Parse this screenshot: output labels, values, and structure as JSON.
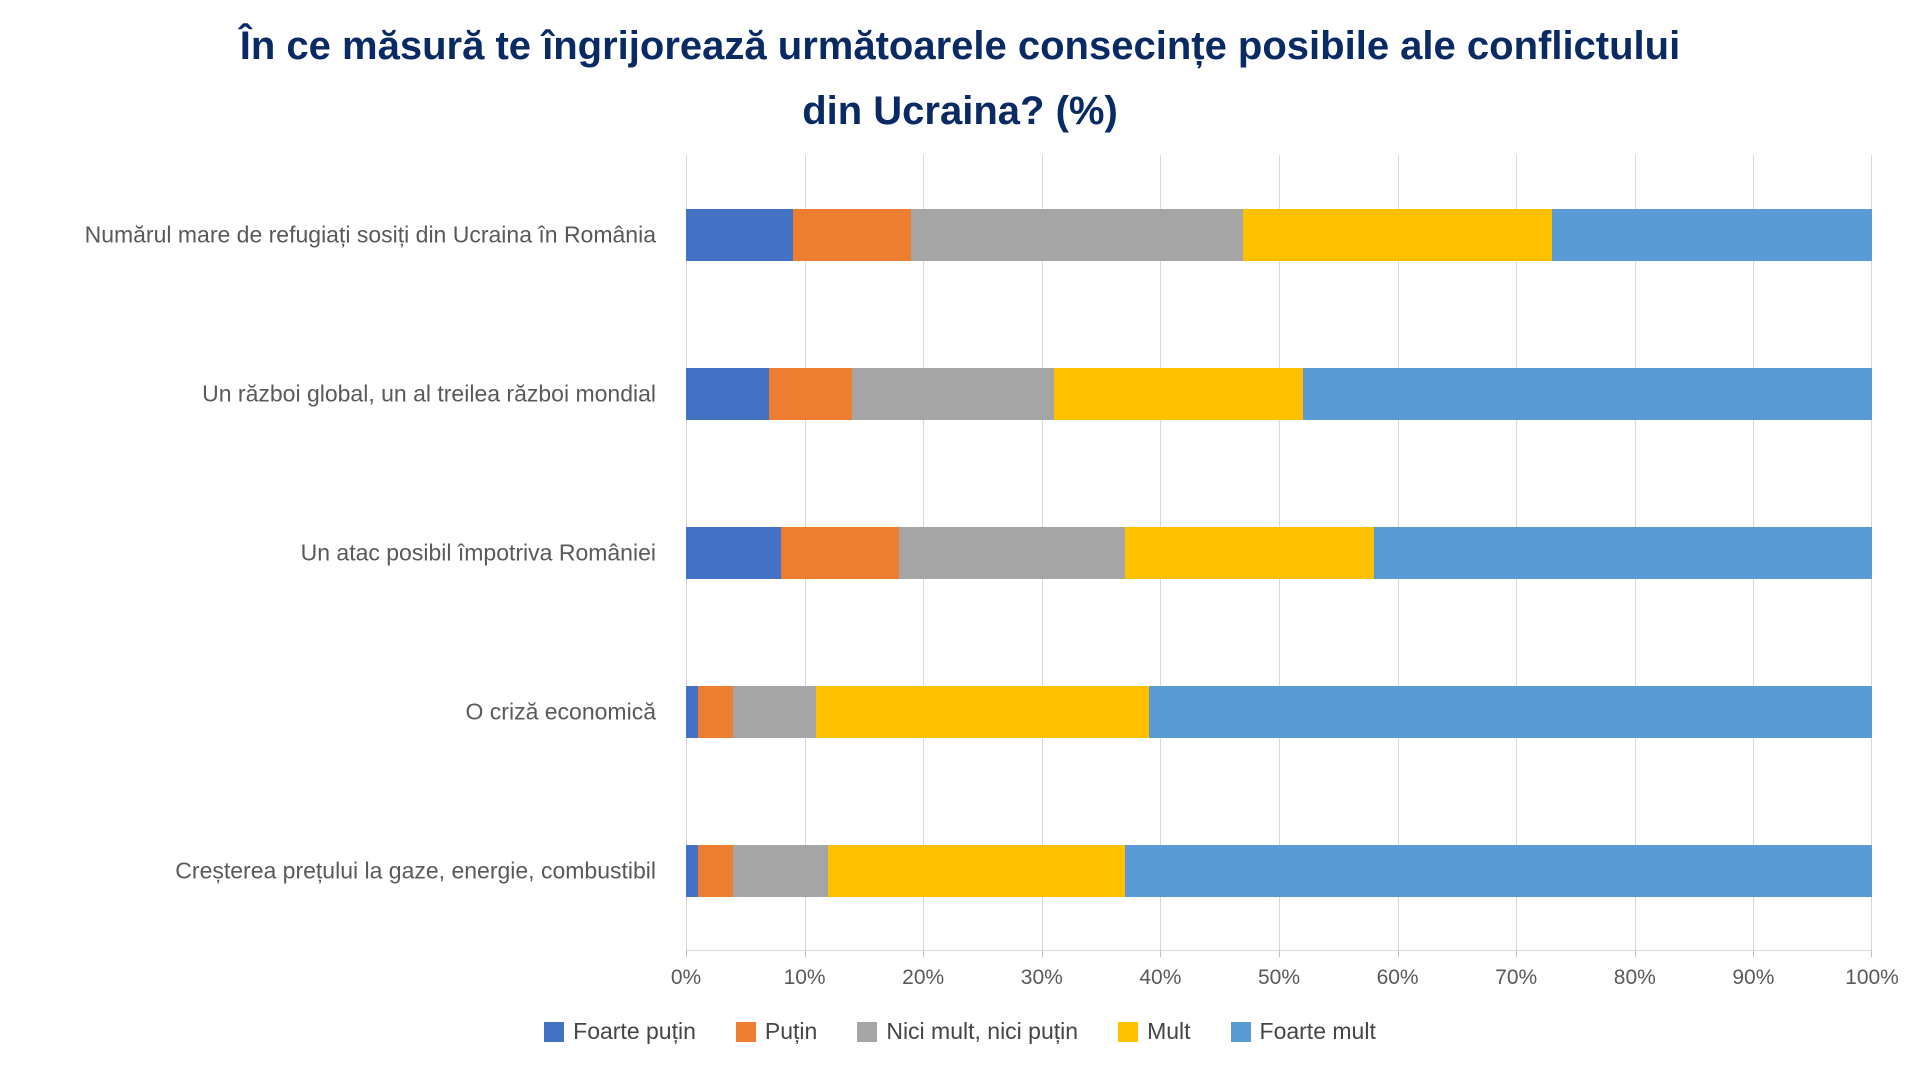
{
  "title": {
    "line1": "În ce măsură te îngrijorează următoarele consecințe posibile ale conflictului",
    "line2": "din Ucraina? (%)",
    "color": "#0a2a64"
  },
  "chart_data": {
    "type": "bar",
    "orientation": "horizontal",
    "stacked": true,
    "stacked_total": 100,
    "title": "În ce măsură te îngrijorează următoarele consecințe posibile ale conflictului din Ucraina? (%)",
    "categories": [
      "Numărul mare de refugiați sosiți din Ucraina în România",
      "Un război global, un al treilea război mondial",
      "Un atac posibil împotriva României",
      "O criză economică",
      "Creșterea prețului la gaze, energie, combustibil"
    ],
    "series": [
      {
        "name": "Foarte puțin",
        "color": "#4472c4",
        "values": [
          9,
          7,
          8,
          1,
          1
        ]
      },
      {
        "name": "Puțin",
        "color": "#ed7d31",
        "values": [
          10,
          7,
          10,
          3,
          3
        ]
      },
      {
        "name": "Nici mult, nici puțin",
        "color": "#a5a5a5",
        "values": [
          28,
          17,
          19,
          7,
          8
        ]
      },
      {
        "name": "Mult",
        "color": "#ffc000",
        "values": [
          26,
          21,
          21,
          28,
          25
        ]
      },
      {
        "name": "Foarte mult",
        "color": "#5b9bd5",
        "values": [
          27,
          48,
          42,
          61,
          63
        ]
      }
    ],
    "x_axis": {
      "min": 0,
      "max": 100,
      "tick_labels": [
        "0%",
        "10%",
        "20%",
        "30%",
        "40%",
        "50%",
        "60%",
        "70%",
        "80%",
        "90%",
        "100%"
      ]
    },
    "grid": true,
    "gridline_color": "#d9d9d9",
    "axis_text_color": "#595959",
    "legend_position": "bottom",
    "legend_text_color": "#454545"
  }
}
